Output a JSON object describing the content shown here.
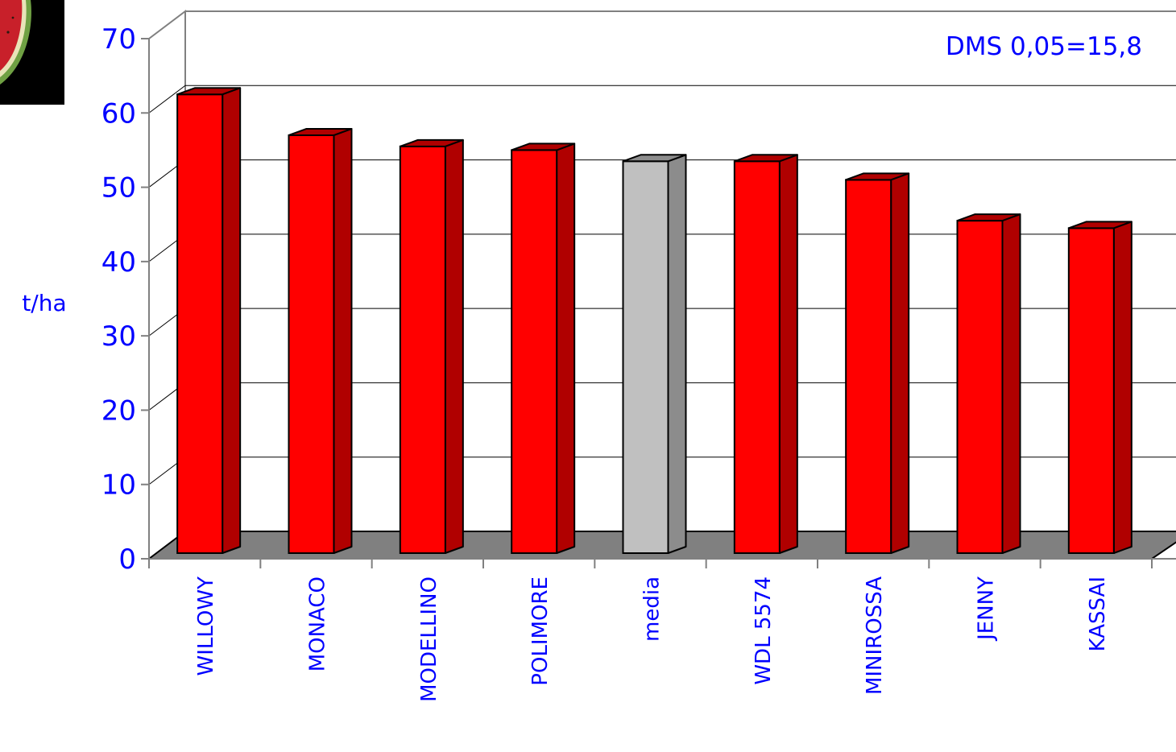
{
  "chart_data": {
    "type": "bar",
    "style": "3d-cylinder",
    "categories": [
      "WILLOWY",
      "MONACO",
      "MODELLINO",
      "POLIMORE",
      "media",
      "WDL 5574",
      "MINIROSSA",
      "JENNY",
      "KASSAI"
    ],
    "values": [
      62.5,
      57,
      55.5,
      55,
      53.5,
      53.5,
      51,
      45.5,
      44.5
    ],
    "highlight_category": "media",
    "ylabel": "t/ha",
    "xlabel": "",
    "ylim": [
      0,
      70
    ],
    "yticks": [
      0,
      10,
      20,
      30,
      40,
      50,
      60,
      70
    ],
    "annotation": "DMS 0,05=15,8",
    "grid": true,
    "colors": {
      "bar": "#ff0000",
      "bar_dark": "#b00000",
      "highlight": "#c0c0c0",
      "highlight_dark": "#8c8c8c",
      "floor": "#808080",
      "text": "#0000ff"
    }
  },
  "decoration": {
    "photo": "watermelon-slice-photo"
  }
}
